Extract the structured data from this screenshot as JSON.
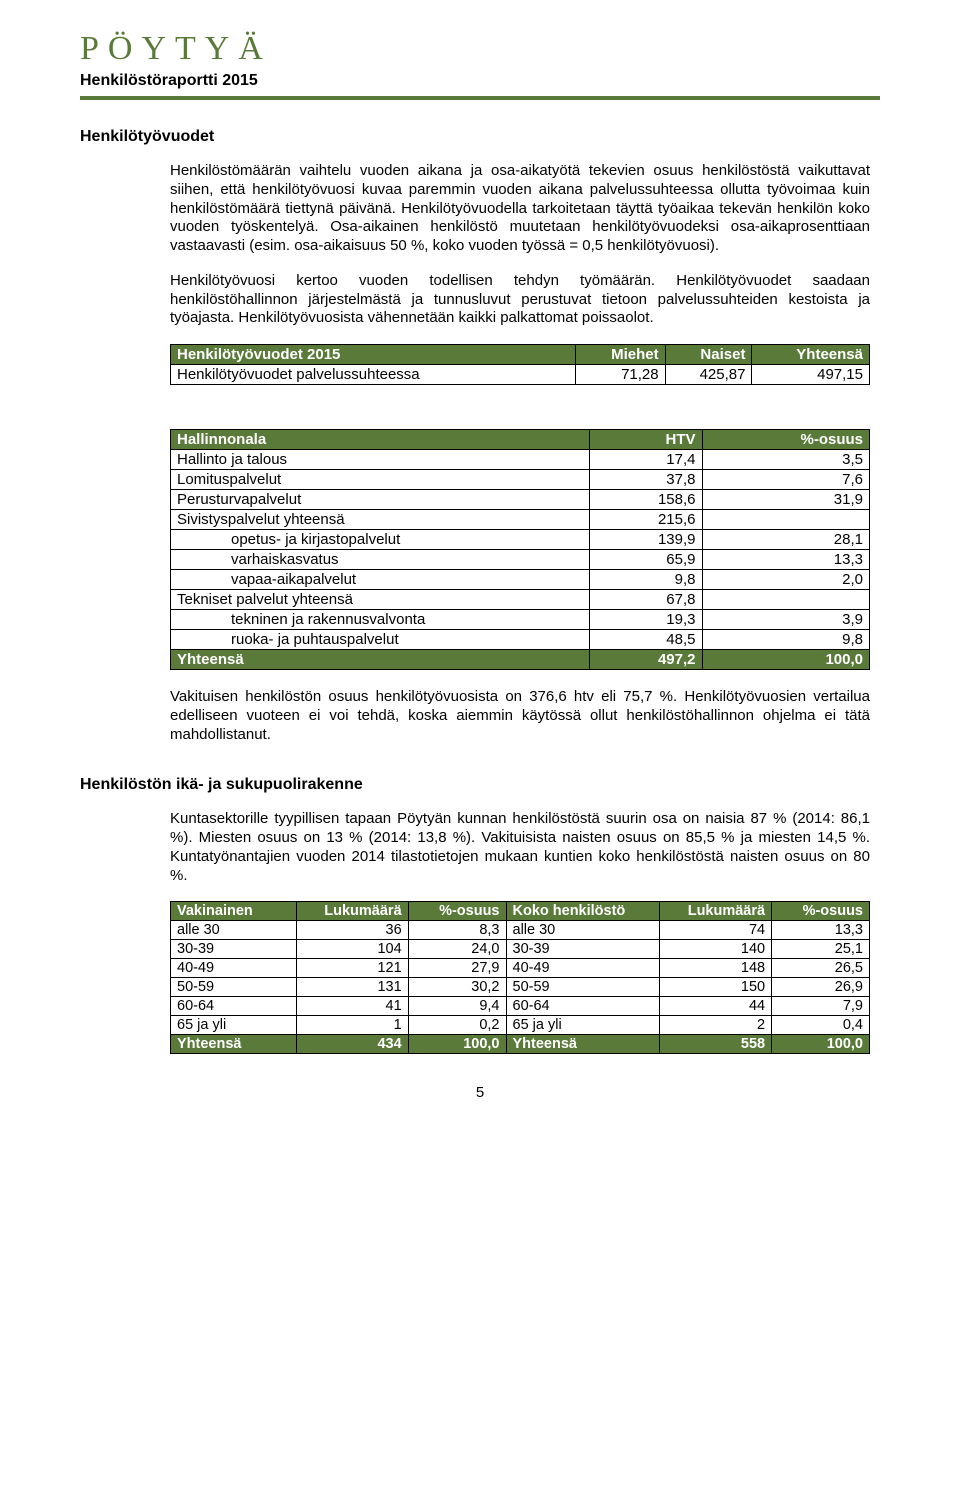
{
  "logo": {
    "text": "PÖYTYÄ"
  },
  "subheader": "Henkilöstöraportti 2015",
  "h1": "Henkilötyövuodet",
  "para1": "Henkilöstömäärän vaihtelu vuoden aikana ja osa-aikatyötä tekevien osuus henkilöstöstä vaikuttavat siihen, että henkilötyövuosi kuvaa paremmin vuoden aikana palvelussuhteessa ollutta työvoimaa kuin henkilöstömäärä tiettynä päivänä. Henkilötyövuodella tarkoitetaan täyttä työaikaa tekevän henkilön koko vuoden työskentelyä. Osa-aikainen henkilöstö muutetaan henkilötyövuodeksi osa-aikaprosenttiaan vastaavasti (esim. osa-aikaisuus 50 %, koko vuoden työssä = 0,5 henkilötyövuosi).",
  "para2": "Henkilötyövuosi kertoo vuoden todellisen tehdyn työmäärän.  Henkilötyövuodet saadaan henkilöstöhallinnon järjestelmästä ja tunnusluvut perustuvat tietoon palvelussuhteiden kestoista ja työajasta. Henkilötyövuosista vähennetään kaikki palkattomat poissaolot.",
  "table1": {
    "headers": [
      "Henkilötyövuodet 2015",
      "Miehet",
      "Naiset",
      "Yhteensä"
    ],
    "row_label": "Henkilötyövuodet palvelussuhteessa",
    "values": [
      "71,28",
      "425,87",
      "497,15"
    ]
  },
  "table2": {
    "headers": [
      "Hallinnonala",
      "HTV",
      "%-osuus"
    ],
    "rows": [
      {
        "label": "Hallinto ja talous",
        "htv": "17,4",
        "pct": "3,5",
        "indent": false
      },
      {
        "label": "Lomituspalvelut",
        "htv": "37,8",
        "pct": "7,6",
        "indent": false
      },
      {
        "label": "Perusturvapalvelut",
        "htv": "158,6",
        "pct": "31,9",
        "indent": false
      },
      {
        "label": "Sivistyspalvelut yhteensä",
        "htv": "215,6",
        "pct": "",
        "indent": false
      },
      {
        "label": "opetus- ja  kirjastopalvelut",
        "htv": "139,9",
        "pct": "28,1",
        "indent": true
      },
      {
        "label": "varhaiskasvatus",
        "htv": "65,9",
        "pct": "13,3",
        "indent": true
      },
      {
        "label": "vapaa-aikapalvelut",
        "htv": "9,8",
        "pct": "2,0",
        "indent": true
      },
      {
        "label": "Tekniset palvelut yhteensä",
        "htv": "67,8",
        "pct": "",
        "indent": false
      },
      {
        "label": "tekninen ja rakennusvalvonta",
        "htv": "19,3",
        "pct": "3,9",
        "indent": true
      },
      {
        "label": "ruoka- ja puhtauspalvelut",
        "htv": "48,5",
        "pct": "9,8",
        "indent": true
      }
    ],
    "footer": {
      "label": "Yhteensä",
      "htv": "497,2",
      "pct": "100,0"
    }
  },
  "para3": "Vakituisen henkilöstön osuus henkilötyövuosista on 376,6 htv eli 75,7 %. Henkilötyövuosien vertailua edelliseen vuoteen ei voi tehdä, koska aiemmin käytössä ollut henkilöstöhallinnon ohjelma ei tätä mahdollistanut.",
  "h2": "Henkilöstön ikä- ja sukupuolirakenne",
  "para4": "Kuntasektorille tyypillisen tapaan Pöytyän kunnan henkilöstöstä suurin osa on naisia 87 % (2014: 86,1 %). Miesten osuus on 13 % (2014: 13,8 %).  Vakituisista naisten osuus on 85,5 % ja miesten 14,5 %. Kuntatyönantajien vuoden 2014 tilastotietojen mukaan kuntien koko henkilöstöstä naisten osuus on 80 %.",
  "table3": {
    "headersL": [
      "Vakinainen",
      "Lukumäärä",
      "%-osuus"
    ],
    "headersR": [
      "Koko henkilöstö",
      "Lukumäärä",
      "%-osuus"
    ],
    "rows": [
      {
        "l": "alle 30",
        "ln": "36",
        "lp": "8,3",
        "r": "alle 30",
        "rn": "74",
        "rp": "13,3"
      },
      {
        "l": "30-39",
        "ln": "104",
        "lp": "24,0",
        "r": "30-39",
        "rn": "140",
        "rp": "25,1"
      },
      {
        "l": "40-49",
        "ln": "121",
        "lp": "27,9",
        "r": "40-49",
        "rn": "148",
        "rp": "26,5"
      },
      {
        "l": "50-59",
        "ln": "131",
        "lp": "30,2",
        "r": "50-59",
        "rn": "150",
        "rp": "26,9"
      },
      {
        "l": "60-64",
        "ln": "41",
        "lp": "9,4",
        "r": "60-64",
        "rn": "44",
        "rp": "7,9"
      },
      {
        "l": "65 ja yli",
        "ln": "1",
        "lp": "0,2",
        "r": "65 ja yli",
        "rn": "2",
        "rp": "0,4"
      }
    ],
    "footer": {
      "l": "Yhteensä",
      "ln": "434",
      "lp": "100,0",
      "r": "Yhteensä",
      "rn": "558",
      "rp": "100,0"
    }
  },
  "page_num": "5",
  "colors": {
    "brand": "#5a7a3a",
    "text": "#000000",
    "bg": "#ffffff"
  }
}
